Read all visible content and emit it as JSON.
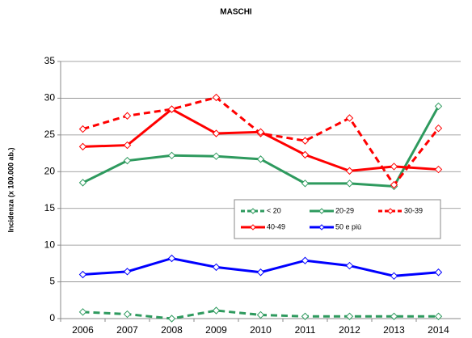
{
  "chart_data": {
    "type": "line",
    "title": "MASCHI",
    "y_label": "Incidenza (x 100.000 ab.)",
    "categories": [
      "2006",
      "2007",
      "2008",
      "2009",
      "2010",
      "2011",
      "2012",
      "2013",
      "2014"
    ],
    "ylim": [
      0,
      35
    ],
    "yticks": [
      0,
      5,
      10,
      15,
      20,
      25,
      30,
      35
    ],
    "grid": true,
    "legend": "right",
    "series": [
      {
        "name": "< 20",
        "color": "#2e9a5e",
        "dashed": true,
        "values": [
          0.9,
          0.6,
          0.0,
          1.1,
          0.5,
          0.3,
          0.3,
          0.3,
          0.3
        ]
      },
      {
        "name": "20-29",
        "color": "#2e9a5e",
        "dashed": false,
        "values": [
          18.5,
          21.5,
          22.2,
          22.1,
          21.7,
          18.4,
          18.4,
          18.0,
          28.9
        ]
      },
      {
        "name": "30-39",
        "color": "#ff0000",
        "dashed": true,
        "values": [
          25.8,
          27.6,
          28.5,
          30.1,
          25.2,
          24.2,
          27.3,
          18.2,
          25.9
        ]
      },
      {
        "name": "40-49",
        "color": "#ff0000",
        "dashed": false,
        "values": [
          23.4,
          23.6,
          28.5,
          25.2,
          25.4,
          22.3,
          20.1,
          20.7,
          20.3
        ]
      },
      {
        "name": "50 e più",
        "color": "#0000ff",
        "dashed": false,
        "values": [
          6.0,
          6.4,
          8.2,
          7.0,
          6.3,
          7.9,
          7.2,
          5.8,
          6.3
        ]
      }
    ]
  }
}
